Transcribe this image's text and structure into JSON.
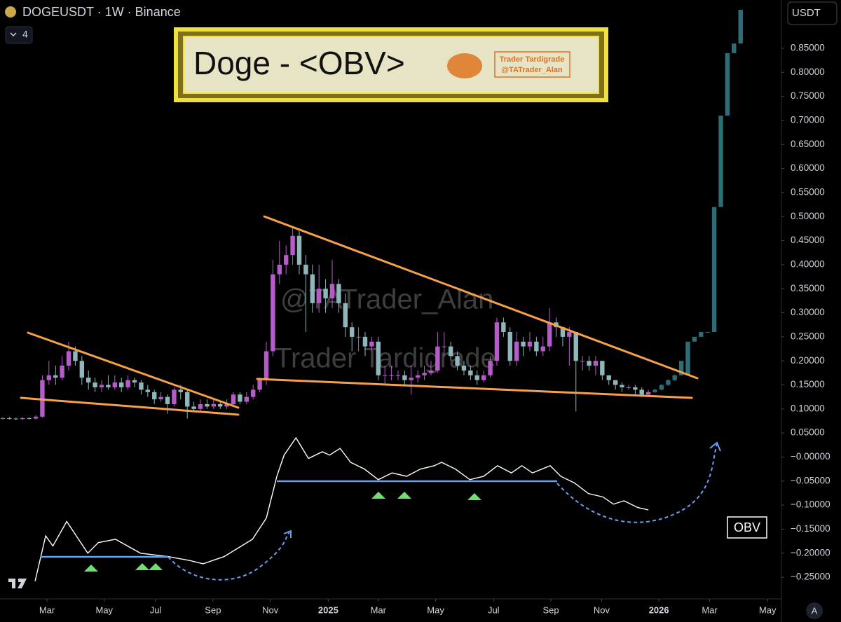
{
  "page": {
    "symbol": "DOGEUSDT · 1W · Binance",
    "interval_badge": "4",
    "currency_button": "USDT",
    "scale_button": "A",
    "banner": {
      "title": "Doge - <OBV>",
      "logo_lines": [
        "Trader Tardigrade",
        "@TATrader_Alan"
      ]
    },
    "watermark": [
      "@TATrader_Alan",
      "Trader Tardigrade"
    ],
    "indicator_label": "OBV"
  },
  "chart_data": {
    "type": "candlestick",
    "xlim": [
      -0.43,
      118.2
    ],
    "ylim": [
      -0.295,
      0.9505
    ],
    "xticks": [
      {
        "value": 6.7,
        "label": "Mar"
      },
      {
        "value": 15.4,
        "label": "May"
      },
      {
        "value": 23.2,
        "label": "Jul"
      },
      {
        "value": 31.9,
        "label": "Sep"
      },
      {
        "value": 40.6,
        "label": "Nov"
      },
      {
        "value": 49.4,
        "label": "2025"
      },
      {
        "value": 57.0,
        "label": "Mar"
      },
      {
        "value": 65.7,
        "label": "May"
      },
      {
        "value": 74.5,
        "label": "Jul"
      },
      {
        "value": 83.2,
        "label": "Sep"
      },
      {
        "value": 90.9,
        "label": "Nov"
      },
      {
        "value": 99.6,
        "label": "2026"
      },
      {
        "value": 107.3,
        "label": "Mar"
      },
      {
        "value": 116.1,
        "label": "May"
      }
    ],
    "yticks": [
      {
        "value": 0.85,
        "label": "0.85000"
      },
      {
        "value": 0.8,
        "label": "0.80000"
      },
      {
        "value": 0.75,
        "label": "0.75000"
      },
      {
        "value": 0.7,
        "label": "0.70000"
      },
      {
        "value": 0.65,
        "label": "0.65000"
      },
      {
        "value": 0.6,
        "label": "0.60000"
      },
      {
        "value": 0.55,
        "label": "0.55000"
      },
      {
        "value": 0.5,
        "label": "0.50000"
      },
      {
        "value": 0.45,
        "label": "0.45000"
      },
      {
        "value": 0.4,
        "label": "0.40000"
      },
      {
        "value": 0.35,
        "label": "0.35000"
      },
      {
        "value": 0.3,
        "label": "0.30000"
      },
      {
        "value": 0.25,
        "label": "0.25000"
      },
      {
        "value": 0.2,
        "label": "0.20000"
      },
      {
        "value": 0.15,
        "label": "0.15000"
      },
      {
        "value": 0.1,
        "label": "0.10000"
      },
      {
        "value": 0.05,
        "label": "0.05000"
      },
      {
        "value": 0,
        "label": "−0.00000"
      },
      {
        "value": -0.05,
        "label": "−0.05000"
      },
      {
        "value": -0.1,
        "label": "−0.10000"
      },
      {
        "value": -0.15,
        "label": "−0.15000"
      },
      {
        "value": -0.2,
        "label": "−0.20000"
      },
      {
        "value": -0.25,
        "label": "−0.25000"
      }
    ],
    "series": [
      {
        "up_color": "#b65cc9",
        "down_color": "#8fb7bb",
        "x": [
          0,
          1,
          2,
          3,
          4,
          5,
          6,
          7,
          8,
          9,
          10,
          11,
          12,
          13,
          14,
          15,
          16,
          17,
          18,
          19,
          20,
          21,
          22,
          23,
          24,
          25,
          26,
          27,
          28,
          29,
          30,
          31,
          32,
          33,
          34,
          35,
          36,
          37,
          38,
          39,
          40,
          41,
          42,
          43,
          44,
          45,
          46,
          47,
          48,
          49,
          50,
          51,
          52,
          53,
          54,
          55,
          56,
          57,
          58,
          59,
          60,
          61,
          62,
          63,
          64,
          65,
          66,
          67,
          68,
          69,
          70,
          71,
          72,
          73,
          74,
          75,
          76,
          77,
          78,
          79,
          80,
          81,
          82,
          83,
          84,
          85,
          86,
          87,
          88,
          89,
          90,
          91,
          92,
          93,
          94,
          95,
          96,
          97,
          98
        ],
        "open": [
          0.08,
          0.081,
          0.08,
          0.079,
          0.081,
          0.08,
          0.084,
          0.16,
          0.17,
          0.165,
          0.19,
          0.22,
          0.2,
          0.165,
          0.155,
          0.145,
          0.15,
          0.145,
          0.155,
          0.145,
          0.16,
          0.155,
          0.14,
          0.135,
          0.12,
          0.125,
          0.11,
          0.14,
          0.135,
          0.105,
          0.1,
          0.11,
          0.105,
          0.11,
          0.105,
          0.11,
          0.13,
          0.115,
          0.125,
          0.14,
          0.16,
          0.22,
          0.38,
          0.4,
          0.42,
          0.46,
          0.4,
          0.38,
          0.32,
          0.35,
          0.33,
          0.36,
          0.32,
          0.27,
          0.25,
          0.25,
          0.23,
          0.24,
          0.17,
          0.17,
          0.17,
          0.17,
          0.16,
          0.165,
          0.17,
          0.175,
          0.18,
          0.23,
          0.23,
          0.21,
          0.19,
          0.18,
          0.17,
          0.16,
          0.17,
          0.2,
          0.28,
          0.26,
          0.2,
          0.24,
          0.23,
          0.24,
          0.22,
          0.23,
          0.28,
          0.27,
          0.25,
          0.26,
          0.2,
          0.2,
          0.19,
          0.2,
          0.17,
          0.16,
          0.15,
          0.145,
          0.145,
          0.14,
          0.13
        ],
        "high": [
          0.083,
          0.083,
          0.082,
          0.083,
          0.083,
          0.087,
          0.17,
          0.2,
          0.19,
          0.21,
          0.24,
          0.23,
          0.21,
          0.18,
          0.165,
          0.16,
          0.17,
          0.17,
          0.165,
          0.17,
          0.165,
          0.16,
          0.15,
          0.14,
          0.135,
          0.13,
          0.145,
          0.15,
          0.14,
          0.115,
          0.12,
          0.12,
          0.12,
          0.115,
          0.12,
          0.135,
          0.135,
          0.135,
          0.15,
          0.165,
          0.24,
          0.41,
          0.45,
          0.44,
          0.48,
          0.47,
          0.42,
          0.4,
          0.4,
          0.37,
          0.41,
          0.37,
          0.34,
          0.28,
          0.27,
          0.26,
          0.25,
          0.25,
          0.19,
          0.19,
          0.18,
          0.18,
          0.19,
          0.18,
          0.19,
          0.2,
          0.26,
          0.26,
          0.24,
          0.22,
          0.2,
          0.19,
          0.18,
          0.18,
          0.21,
          0.29,
          0.29,
          0.27,
          0.26,
          0.25,
          0.26,
          0.25,
          0.25,
          0.31,
          0.29,
          0.27,
          0.27,
          0.26,
          0.21,
          0.21,
          0.21,
          0.2,
          0.17,
          0.16,
          0.155,
          0.15,
          0.15,
          0.145,
          0.14
        ],
        "low": [
          0.078,
          0.078,
          0.077,
          0.077,
          0.078,
          0.078,
          0.082,
          0.15,
          0.15,
          0.16,
          0.18,
          0.19,
          0.15,
          0.14,
          0.135,
          0.135,
          0.14,
          0.14,
          0.135,
          0.14,
          0.145,
          0.13,
          0.125,
          0.11,
          0.115,
          0.09,
          0.105,
          0.12,
          0.08,
          0.095,
          0.095,
          0.1,
          0.1,
          0.1,
          0.1,
          0.105,
          0.11,
          0.11,
          0.12,
          0.135,
          0.15,
          0.21,
          0.36,
          0.38,
          0.4,
          0.38,
          0.26,
          0.3,
          0.3,
          0.3,
          0.31,
          0.3,
          0.25,
          0.22,
          0.22,
          0.21,
          0.22,
          0.16,
          0.15,
          0.16,
          0.16,
          0.15,
          0.13,
          0.155,
          0.16,
          0.17,
          0.175,
          0.21,
          0.2,
          0.18,
          0.17,
          0.16,
          0.15,
          0.155,
          0.165,
          0.19,
          0.25,
          0.19,
          0.19,
          0.21,
          0.22,
          0.21,
          0.21,
          0.22,
          0.25,
          0.23,
          0.19,
          0.095,
          0.18,
          0.18,
          0.17,
          0.16,
          0.15,
          0.14,
          0.135,
          0.14,
          0.13,
          0.125,
          0.125
        ],
        "close": [
          0.081,
          0.08,
          0.079,
          0.081,
          0.08,
          0.084,
          0.16,
          0.17,
          0.165,
          0.19,
          0.22,
          0.2,
          0.165,
          0.155,
          0.145,
          0.15,
          0.145,
          0.155,
          0.145,
          0.16,
          0.155,
          0.14,
          0.135,
          0.12,
          0.125,
          0.11,
          0.14,
          0.135,
          0.105,
          0.1,
          0.11,
          0.105,
          0.11,
          0.105,
          0.11,
          0.13,
          0.115,
          0.125,
          0.14,
          0.16,
          0.22,
          0.38,
          0.4,
          0.42,
          0.46,
          0.4,
          0.38,
          0.32,
          0.35,
          0.33,
          0.36,
          0.32,
          0.27,
          0.25,
          0.25,
          0.23,
          0.24,
          0.17,
          0.17,
          0.17,
          0.17,
          0.16,
          0.165,
          0.17,
          0.175,
          0.18,
          0.23,
          0.23,
          0.21,
          0.19,
          0.18,
          0.17,
          0.16,
          0.17,
          0.2,
          0.28,
          0.26,
          0.2,
          0.24,
          0.23,
          0.24,
          0.22,
          0.23,
          0.28,
          0.27,
          0.25,
          0.26,
          0.2,
          0.2,
          0.19,
          0.2,
          0.17,
          0.16,
          0.15,
          0.145,
          0.145,
          0.14,
          0.13,
          0.135
        ]
      },
      {
        "color": "#2f6d76",
        "x": [
          99,
          100,
          101,
          102,
          103,
          104,
          105,
          106,
          107,
          108,
          109,
          110,
          111,
          112
        ],
        "open": [
          0.135,
          0.14,
          0.15,
          0.16,
          0.17,
          0.17,
          0.24,
          0.25,
          0.26,
          0.26,
          0.52,
          0.71,
          0.84,
          0.86
        ],
        "high": [
          0.142,
          0.152,
          0.162,
          0.172,
          0.2,
          0.24,
          0.25,
          0.26,
          0.26,
          0.52,
          0.71,
          0.84,
          0.86,
          0.93
        ],
        "low": [
          0.133,
          0.138,
          0.148,
          0.158,
          0.17,
          0.17,
          0.24,
          0.25,
          0.26,
          0.26,
          0.52,
          0.71,
          0.84,
          0.86
        ],
        "close": [
          0.14,
          0.15,
          0.16,
          0.17,
          0.2,
          0.24,
          0.25,
          0.26,
          0.26,
          0.52,
          0.71,
          0.84,
          0.86,
          0.93
        ]
      }
    ],
    "obv": {
      "color": "#ffffff",
      "x": [
        4.9,
        6.5,
        7.6,
        9.7,
        12.9,
        14.5,
        17.1,
        20.9,
        25.1,
        28.3,
        30.4,
        33.6,
        37.9,
        40.0,
        41.6,
        42.7,
        44.5,
        46.4,
        48.5,
        49.6,
        51.2,
        52.8,
        54.9,
        57.0,
        59.1,
        61.3,
        63.4,
        65.5,
        66.6,
        68.7,
        70.9,
        73.0,
        75.1,
        77.2,
        78.8,
        80.4,
        83.1,
        84.7,
        86.8,
        88.9,
        91.1,
        92.7,
        94.3,
        96.4,
        98.0
      ],
      "values": [
        -0.258,
        -0.164,
        -0.185,
        -0.134,
        -0.2,
        -0.178,
        -0.171,
        -0.2,
        -0.207,
        -0.215,
        -0.222,
        -0.207,
        -0.171,
        -0.127,
        -0.04,
        0.004,
        0.04,
        -0.003,
        0.011,
        0.004,
        0.018,
        -0.011,
        -0.025,
        -0.047,
        -0.033,
        -0.04,
        -0.025,
        -0.018,
        -0.011,
        -0.025,
        -0.047,
        -0.04,
        -0.018,
        -0.033,
        -0.018,
        -0.033,
        -0.018,
        -0.04,
        -0.054,
        -0.076,
        -0.083,
        -0.098,
        -0.091,
        -0.105,
        -0.11
      ]
    }
  }
}
